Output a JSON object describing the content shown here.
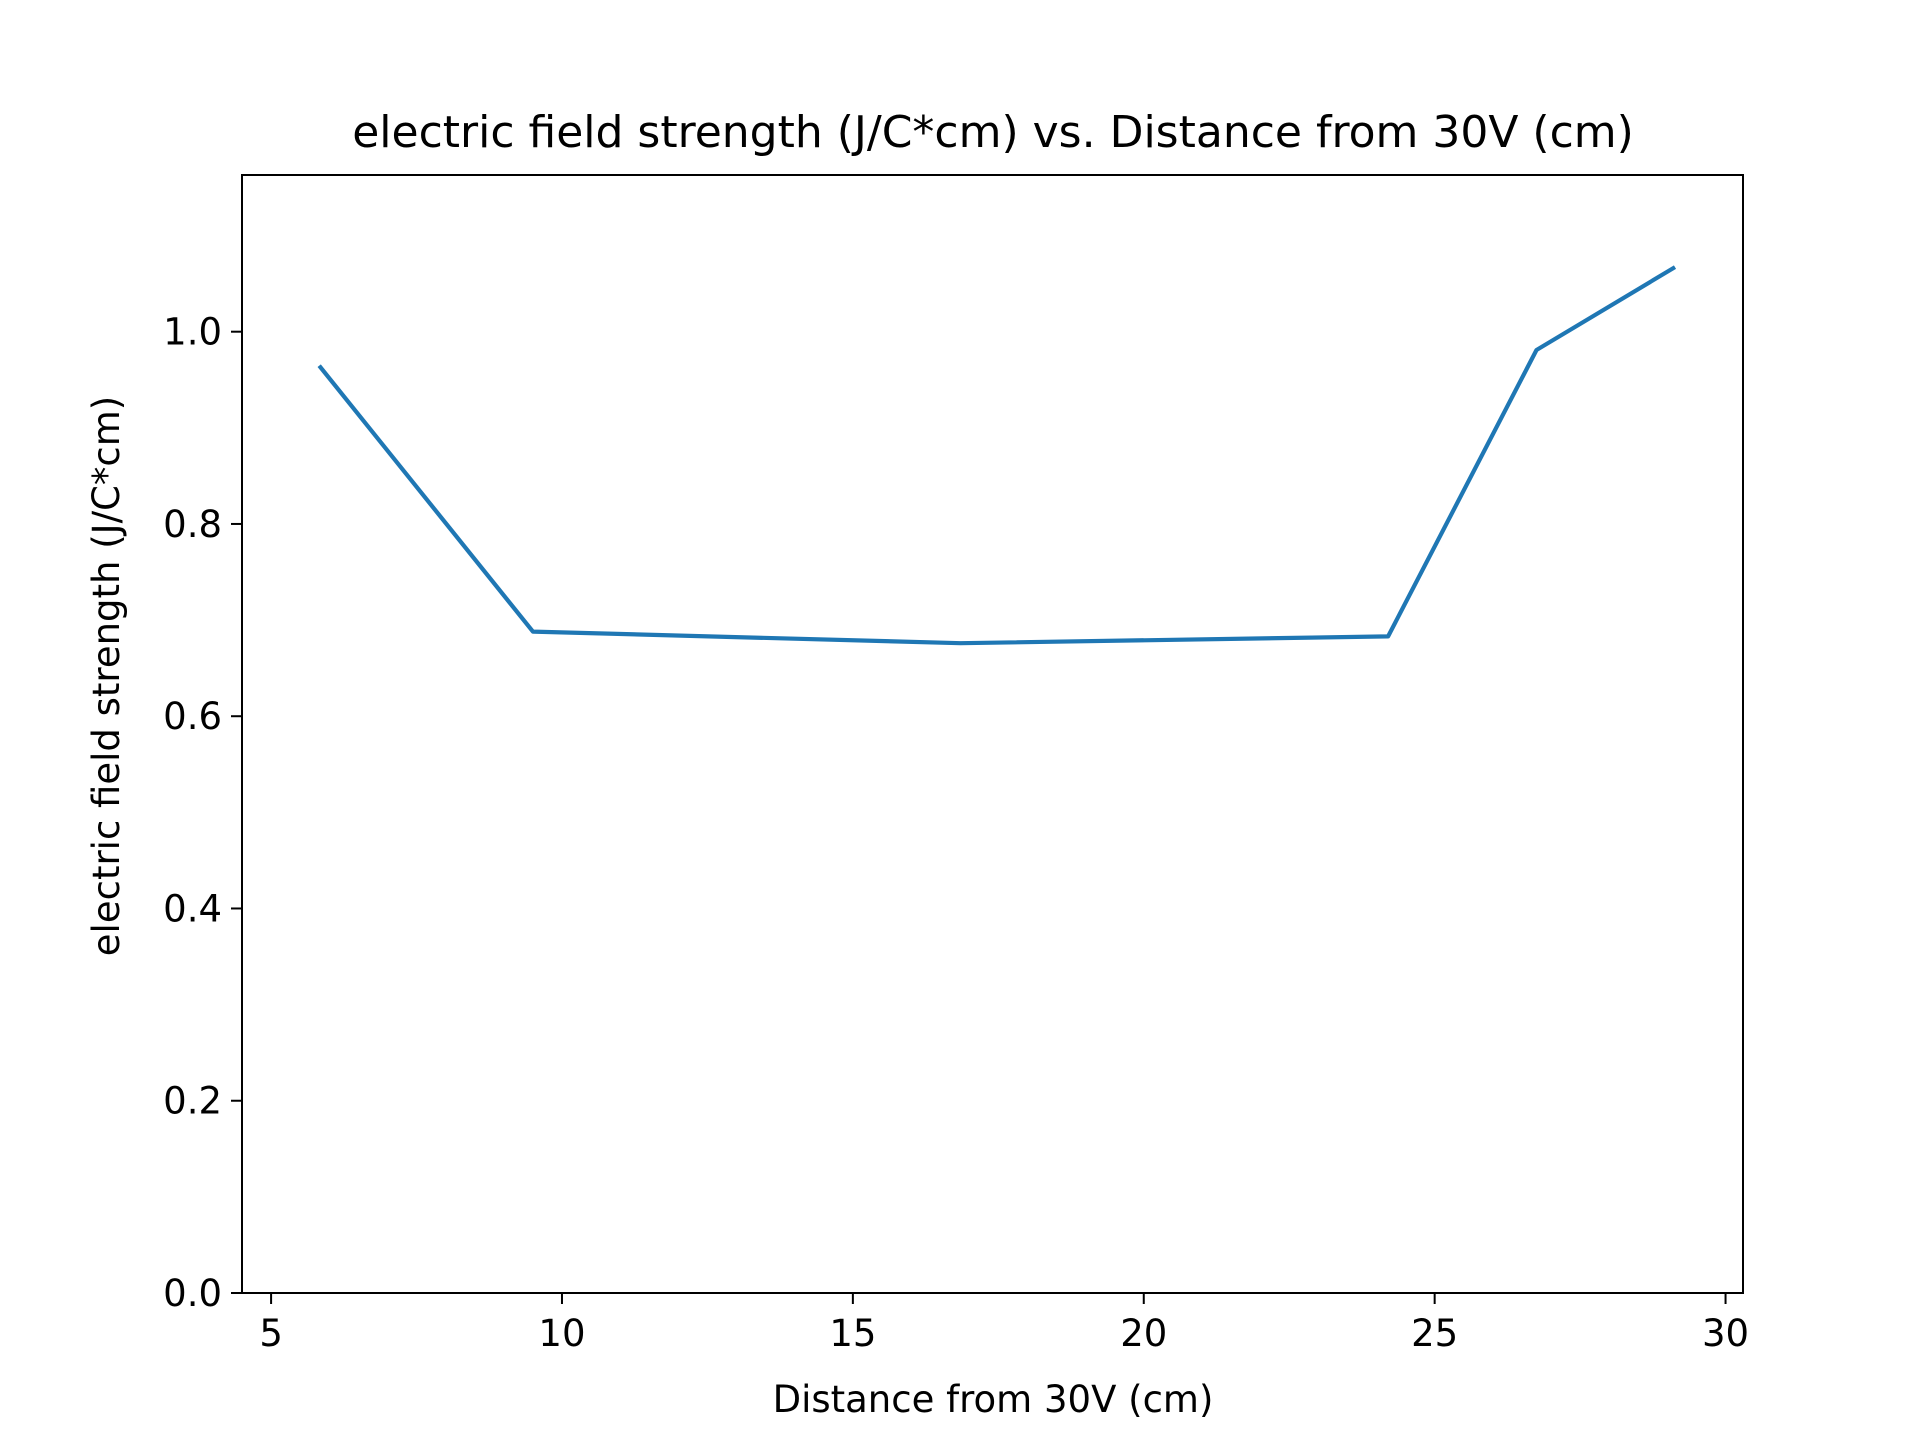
{
  "chart_data": {
    "type": "line",
    "title": "electric field strength (J/C*cm) vs. Distance from 30V (cm)",
    "xlabel": "Distance from 30V (cm)",
    "ylabel": "electric field strength (J/C*cm)",
    "xlim": [
      4.5,
      30.3
    ],
    "ylim": [
      0.0,
      1.163
    ],
    "xticks": [
      5,
      10,
      15,
      20,
      25,
      30
    ],
    "xtick_labels": [
      "5",
      "10",
      "15",
      "20",
      "25",
      "30"
    ],
    "yticks": [
      0.0,
      0.2,
      0.4,
      0.6,
      0.8,
      1.0
    ],
    "ytick_labels": [
      "0.0",
      "0.2",
      "0.4",
      "0.6",
      "0.8",
      "1.0"
    ],
    "grid": false,
    "series": [
      {
        "color": "#1f77b4",
        "x": [
          5.85,
          9.5,
          16.85,
          24.2,
          26.75,
          29.1
        ],
        "y": [
          0.963,
          0.688,
          0.676,
          0.683,
          0.981,
          1.066
        ]
      }
    ]
  }
}
